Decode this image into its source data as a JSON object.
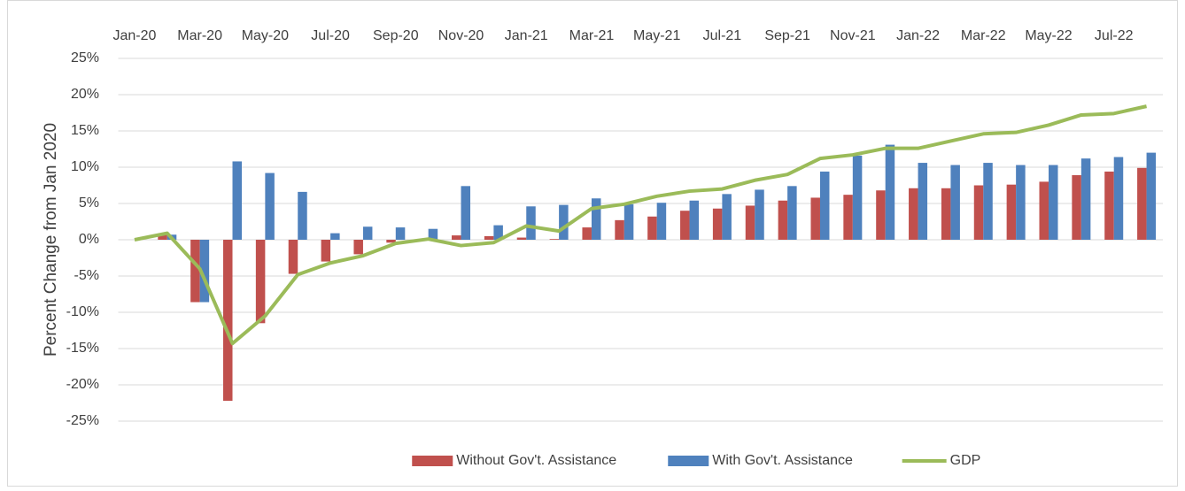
{
  "chart_data": {
    "type": "bar",
    "y_label": "Percent Change from Jan 2020",
    "categories": [
      "Jan-20",
      null,
      "Mar-20",
      null,
      "May-20",
      null,
      "Jul-20",
      null,
      "Sep-20",
      null,
      "Nov-20",
      null,
      "Jan-21",
      null,
      "Mar-21",
      null,
      "May-21",
      null,
      "Jul-21",
      null,
      "Sep-21",
      null,
      "Nov-21",
      null,
      "Jan-22",
      null,
      "Mar-22",
      null,
      "May-22",
      null,
      "Jul-22",
      null
    ],
    "series": [
      {
        "name": "Without Gov't. Assistance",
        "type": "bar",
        "color": "#c0504d",
        "values": [
          0,
          0.7,
          -8.6,
          -22.2,
          -11.5,
          -4.7,
          -3.0,
          -2.0,
          -0.4,
          0.1,
          0.6,
          0.5,
          0.3,
          0.1,
          1.7,
          2.7,
          3.2,
          4.0,
          4.3,
          4.7,
          5.4,
          5.8,
          6.2,
          6.8,
          7.1,
          7.1,
          7.5,
          7.6,
          8.0,
          8.9,
          9.4,
          9.9
        ]
      },
      {
        "name": "With Gov't. Assistance",
        "type": "bar",
        "color": "#4f81bd",
        "values": [
          0,
          0.7,
          -8.6,
          10.8,
          9.2,
          6.6,
          0.9,
          1.8,
          1.7,
          1.5,
          7.4,
          2.0,
          4.6,
          4.8,
          5.7,
          4.9,
          5.1,
          5.4,
          6.3,
          6.9,
          7.4,
          9.4,
          11.6,
          13.1,
          10.6,
          10.3,
          10.6,
          10.3,
          10.3,
          11.2,
          11.4,
          12.0
        ]
      },
      {
        "name": "GDP",
        "type": "line",
        "color": "#9bbb59",
        "values": [
          0,
          0.9,
          -4.0,
          -14.3,
          -10.5,
          -4.8,
          -3.2,
          -2.2,
          -0.5,
          0.1,
          -0.8,
          -0.4,
          1.9,
          1.2,
          4.3,
          4.9,
          6.0,
          6.7,
          7.0,
          8.2,
          9.0,
          11.2,
          11.7,
          12.6,
          12.6,
          13.6,
          14.6,
          14.8,
          15.8,
          17.2,
          17.4,
          18.4
        ]
      }
    ],
    "ylim": [
      -25,
      25
    ],
    "yticks": [
      {
        "value": -25,
        "label": "-25%"
      },
      {
        "value": -20,
        "label": "-20%"
      },
      {
        "value": -15,
        "label": "-15%"
      },
      {
        "value": -10,
        "label": "-10%"
      },
      {
        "value": -5,
        "label": "-5%"
      },
      {
        "value": 0,
        "label": "0%"
      },
      {
        "value": 5,
        "label": "5%"
      },
      {
        "value": 10,
        "label": "10%"
      },
      {
        "value": 15,
        "label": "15%"
      },
      {
        "value": 20,
        "label": "20%"
      },
      {
        "value": 25,
        "label": "25%"
      }
    ],
    "grid": true,
    "legend": "bottom"
  }
}
